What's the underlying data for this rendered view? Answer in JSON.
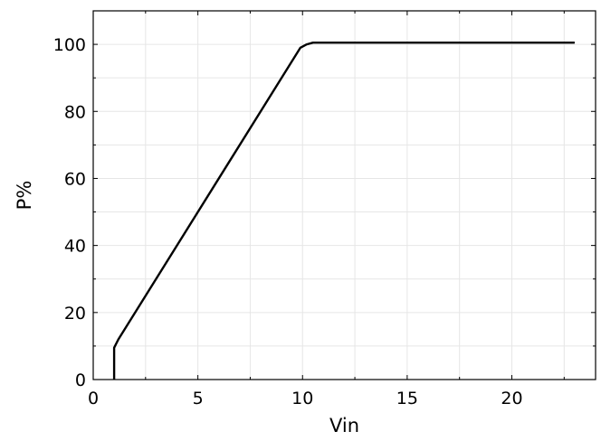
{
  "chart_data": {
    "type": "line",
    "title": "",
    "xlabel": "Vin",
    "ylabel": "P%",
    "xlim": [
      0,
      24
    ],
    "ylim": [
      0,
      110
    ],
    "grid": true,
    "xticks": [
      0,
      5,
      10,
      15,
      20
    ],
    "yticks": [
      0,
      20,
      40,
      60,
      80,
      100
    ],
    "x_minor_step": 2.5,
    "y_minor_step": 10,
    "series": [
      {
        "color": "#000000",
        "points": [
          {
            "x": 1.0,
            "y": 0
          },
          {
            "x": 1.0,
            "y": 9.5
          },
          {
            "x": 1.2,
            "y": 12
          },
          {
            "x": 9.9,
            "y": 99
          },
          {
            "x": 10.2,
            "y": 100
          },
          {
            "x": 10.5,
            "y": 100.5
          },
          {
            "x": 23.0,
            "y": 100.5
          }
        ]
      }
    ]
  }
}
